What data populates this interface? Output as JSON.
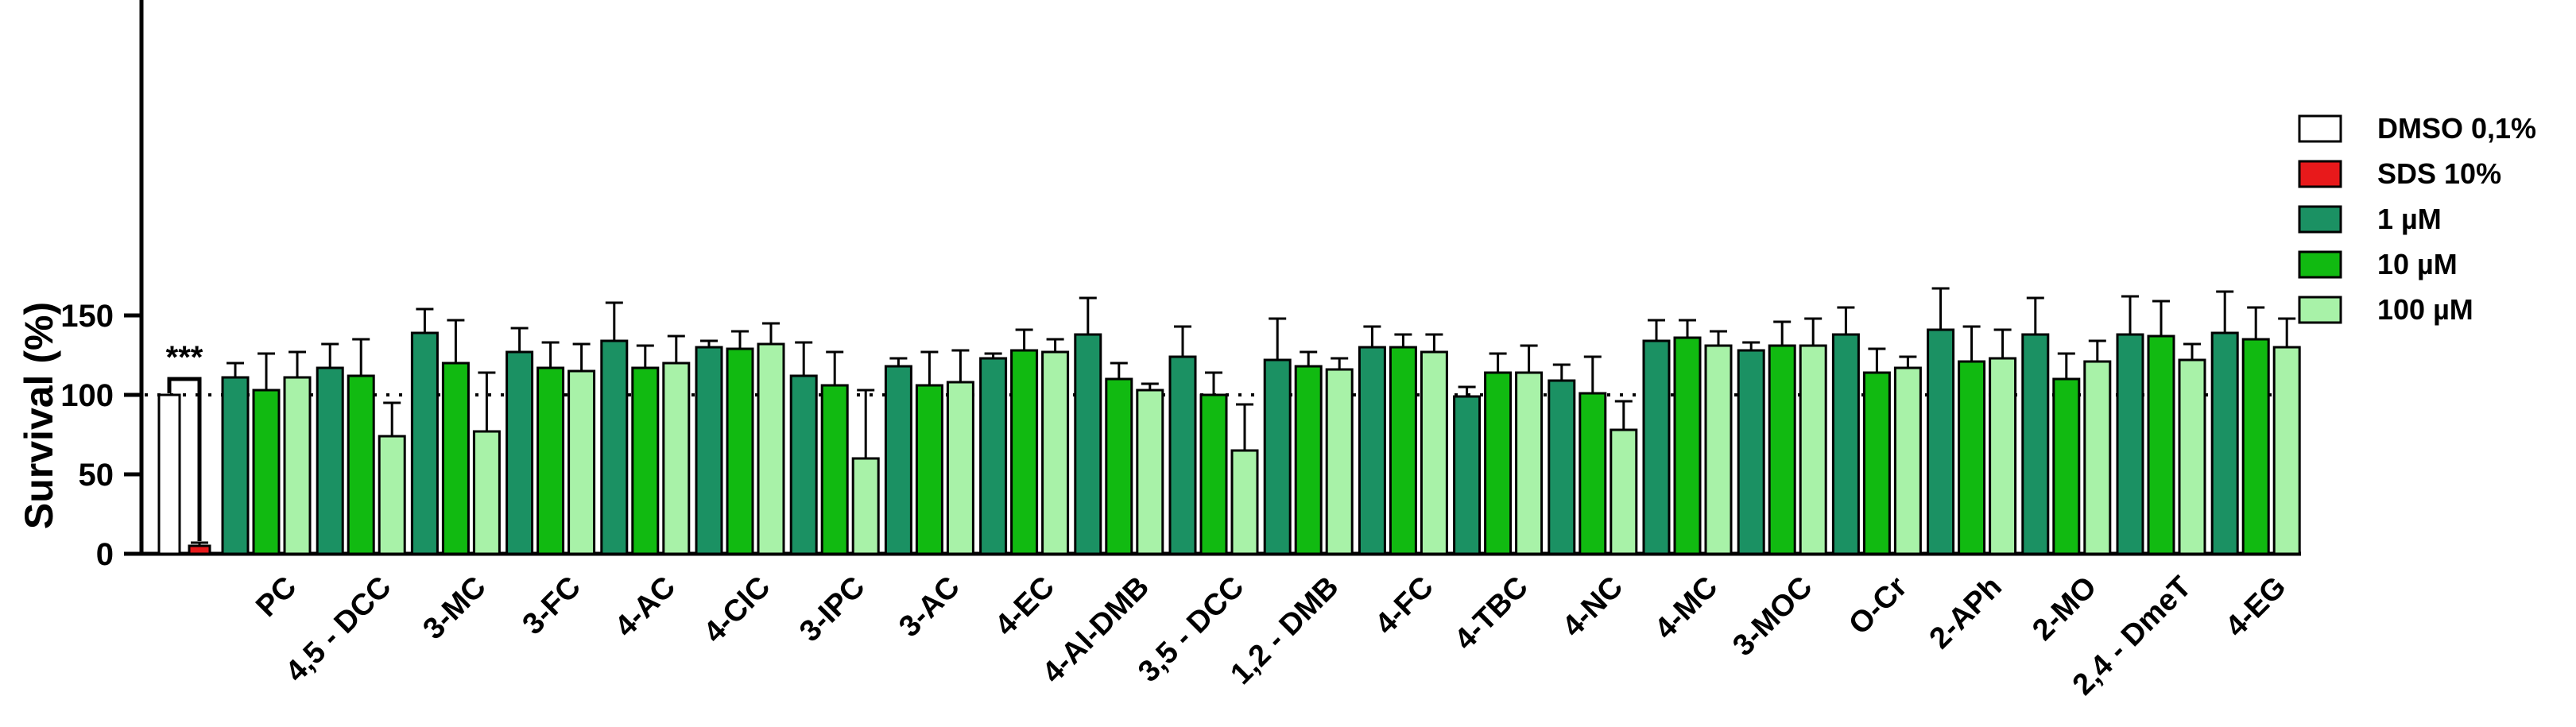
{
  "chart_data": {
    "type": "bar",
    "ylabel": "Survival (%)",
    "ylim": [
      0,
      175
    ],
    "yticks": [
      0,
      50,
      100,
      150
    ],
    "reference_line": 100,
    "significance_label": "***",
    "controls": [
      {
        "name": "DMSO 0,1%",
        "value": 100,
        "err": 0,
        "color": "#ffffff"
      },
      {
        "name": "SDS 10%",
        "value": 5,
        "err": 2,
        "color": "#e8191b"
      }
    ],
    "series": [
      {
        "name": "1 µM",
        "color": "#1b9163"
      },
      {
        "name": "10 µM",
        "color": "#11ba11"
      },
      {
        "name": "100 µM",
        "color": "#a8f2a8"
      }
    ],
    "categories": [
      "PC",
      "4,5 - DCC",
      "3-MC",
      "3-FC",
      "4-AC",
      "4-ClC",
      "3-IPC",
      "3-AC",
      "4-EC",
      "4-Al-DMB",
      "3,5 - DCC",
      "1,2 - DMB",
      "4-FC",
      "4-TBC",
      "4-NC",
      "4-MC",
      "3-MOC",
      "O-Cr",
      "2-APh",
      "2-MO",
      "2,4 - DmeT",
      "4-EG"
    ],
    "values": [
      [
        111,
        103,
        111
      ],
      [
        117,
        112,
        74
      ],
      [
        139,
        120,
        77
      ],
      [
        127,
        117,
        115
      ],
      [
        134,
        117,
        120
      ],
      [
        130,
        129,
        132
      ],
      [
        112,
        106,
        60
      ],
      [
        118,
        106,
        108
      ],
      [
        123,
        128,
        127
      ],
      [
        138,
        110,
        103
      ],
      [
        124,
        100,
        65
      ],
      [
        122,
        118,
        116
      ],
      [
        130,
        130,
        127
      ],
      [
        99,
        114,
        114
      ],
      [
        109,
        101,
        78
      ],
      [
        134,
        136,
        131
      ],
      [
        128,
        131,
        131
      ],
      [
        138,
        114,
        117
      ],
      [
        141,
        121,
        123
      ],
      [
        138,
        110,
        121
      ],
      [
        138,
        137,
        122
      ],
      [
        139,
        135,
        130
      ]
    ],
    "errors": [
      [
        9,
        23,
        16
      ],
      [
        15,
        23,
        21
      ],
      [
        15,
        27,
        37
      ],
      [
        15,
        16,
        17
      ],
      [
        24,
        14,
        17
      ],
      [
        4,
        11,
        13
      ],
      [
        21,
        21,
        43
      ],
      [
        5,
        21,
        20
      ],
      [
        3,
        13,
        8
      ],
      [
        23,
        10,
        4
      ],
      [
        19,
        14,
        29
      ],
      [
        26,
        9,
        7
      ],
      [
        13,
        8,
        11
      ],
      [
        6,
        12,
        17
      ],
      [
        10,
        23,
        18
      ],
      [
        13,
        11,
        9
      ],
      [
        5,
        15,
        17
      ],
      [
        17,
        15,
        7
      ],
      [
        26,
        22,
        18
      ],
      [
        23,
        16,
        13
      ],
      [
        24,
        22,
        10
      ],
      [
        26,
        20,
        18
      ]
    ]
  }
}
